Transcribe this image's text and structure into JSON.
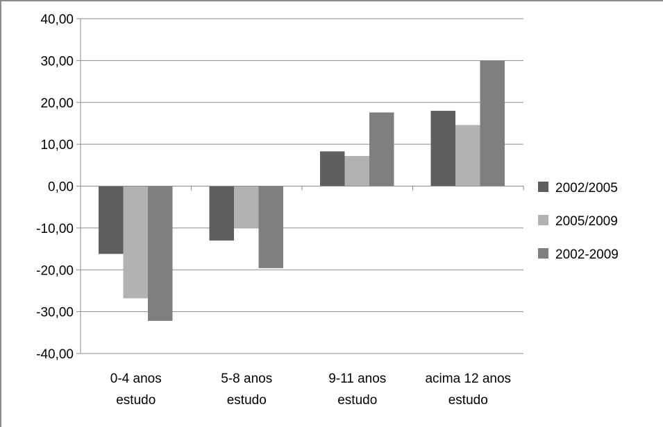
{
  "chart_data": {
    "type": "bar",
    "categories": [
      [
        "0-4 anos",
        "estudo"
      ],
      [
        "5-8 anos",
        "estudo"
      ],
      [
        "9-11 anos",
        "estudo"
      ],
      [
        "acima 12 anos",
        "estudo"
      ]
    ],
    "series": [
      {
        "name": "2002/2005",
        "color": "#5f5f5f",
        "values": [
          -16.2,
          -13.0,
          8.3,
          18.0
        ]
      },
      {
        "name": "2005/2009",
        "color": "#b2b2b2",
        "values": [
          -26.8,
          -10.0,
          7.2,
          14.6
        ]
      },
      {
        "name": "2002-2009",
        "color": "#7f7f7f",
        "values": [
          -32.2,
          -19.6,
          17.6,
          30.0
        ]
      }
    ],
    "y_ticks": [
      "40,00",
      "30,00",
      "20,00",
      "10,00",
      "0,00",
      "-10,00",
      "-20,00",
      "-30,00",
      "-40,00"
    ],
    "ylim": [
      -40,
      40
    ],
    "grid": true,
    "legend_position": "right",
    "title": "",
    "xlabel": "",
    "ylabel": ""
  }
}
